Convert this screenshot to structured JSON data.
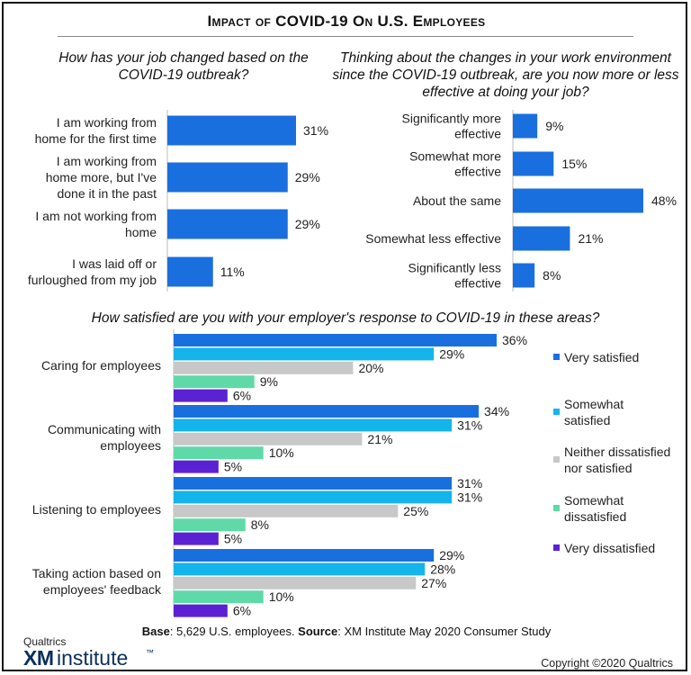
{
  "title": "Impact of COVID-19 On U.S. Employees",
  "footer": {
    "base_label": "Base",
    "base_text": ": 5,629 U.S. employees. ",
    "source_label": "Source",
    "source_text": ": XM Institute  May 2020 Consumer Study"
  },
  "logo": {
    "brand": "Qualtrics",
    "xm": "XM",
    "institute": "institute",
    "tm": "™"
  },
  "copyright": "Copyright ©2020 Qualtrics",
  "colors": {
    "primary_bar": "#1a6fdf",
    "very_satisfied": "#1a6fdf",
    "somewhat_satisfied": "#14b4ec",
    "neither": "#c8c8c8",
    "somewhat_dissatisfied": "#5fd9a8",
    "very_dissatisfied": "#5b22d4"
  },
  "chart_data": [
    {
      "type": "bar",
      "orientation": "horizontal",
      "title": "How has your job changed based on the COVID-19 outbreak?",
      "categories": [
        [
          "I am working from",
          "home for the first time"
        ],
        [
          "I am working from",
          "home more, but I've",
          "done it in the past"
        ],
        [
          "I am not working from",
          "home"
        ],
        [
          "I was laid off or",
          "furloughed from my job"
        ]
      ],
      "values": [
        31,
        29,
        29,
        11
      ],
      "labels": [
        "31%",
        "29%",
        "29%",
        "11%"
      ],
      "unit": "%",
      "xlim": [
        0,
        48
      ]
    },
    {
      "type": "bar",
      "orientation": "horizontal",
      "title": "Thinking about the changes in your work environment since the COVID-19 outbreak, are you now more or less effective at doing your job?",
      "categories": [
        [
          "Significantly more",
          "effective"
        ],
        [
          "Somewhat more",
          "effective"
        ],
        [
          "About the same"
        ],
        [
          "Somewhat less effective"
        ],
        [
          "Significantly less",
          "effective"
        ]
      ],
      "values": [
        9,
        15,
        48,
        21,
        8
      ],
      "labels": [
        "9%",
        "15%",
        "48%",
        "21%",
        "8%"
      ],
      "unit": "%",
      "xlim": [
        0,
        48
      ]
    },
    {
      "type": "bar",
      "orientation": "horizontal",
      "title": "How satisfied are you with your employer's response to COVID-19 in these areas?",
      "categories": [
        [
          "Caring for employees"
        ],
        [
          "Communicating with",
          "employees"
        ],
        [
          "Listening to employees"
        ],
        [
          "Taking action based on",
          "employees' feedback"
        ]
      ],
      "series": [
        {
          "name": "Very satisfied",
          "color": "#1a6fdf",
          "values": [
            36,
            34,
            31,
            29
          ],
          "labels": [
            "36%",
            "34%",
            "31%",
            "29%"
          ]
        },
        {
          "name": "Somewhat satisfied",
          "color": "#14b4ec",
          "values": [
            29,
            31,
            31,
            28
          ],
          "labels": [
            "29%",
            "31%",
            "31%",
            "28%"
          ]
        },
        {
          "name": "Neither dissatisfied nor satisfied",
          "color": "#c8c8c8",
          "values": [
            20,
            21,
            25,
            27
          ],
          "labels": [
            "20%",
            "21%",
            "25%",
            "27%"
          ]
        },
        {
          "name": "Somewhat dissatisfied",
          "color": "#5fd9a8",
          "values": [
            9,
            10,
            8,
            10
          ],
          "labels": [
            "9%",
            "10%",
            "8%",
            "10%"
          ]
        },
        {
          "name": "Very dissatisfied",
          "color": "#5b22d4",
          "values": [
            6,
            5,
            5,
            6
          ],
          "labels": [
            "6%",
            "5%",
            "5%",
            "6%"
          ]
        }
      ],
      "legend_items": [
        [
          "Very satisfied"
        ],
        [
          "Somewhat",
          "satisfied"
        ],
        [
          "Neither dissatisfied",
          "nor satisfied"
        ],
        [
          "Somewhat",
          "dissatisfied"
        ],
        [
          "Very dissatisfied"
        ]
      ],
      "legend_position": "right",
      "unit": "%",
      "xlim": [
        0,
        36
      ]
    }
  ]
}
